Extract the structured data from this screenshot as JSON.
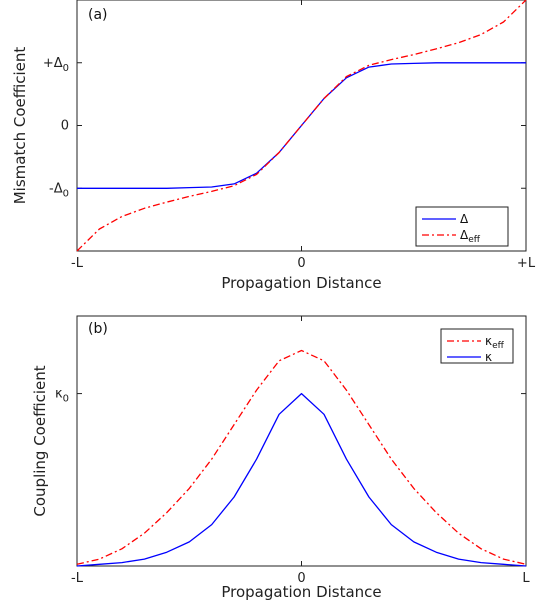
{
  "colors": {
    "blue": "#0000ff",
    "red": "#ff0000",
    "axis": "#222222"
  },
  "chart_data": [
    {
      "type": "line",
      "panel_label": "(a)",
      "xlabel": "Propagation Distance",
      "ylabel": "Mismatch Coefficient",
      "xlim": [
        -1,
        1
      ],
      "ylim": [
        -2,
        2
      ],
      "x_ticks": [
        {
          "value": -1,
          "label": "-L"
        },
        {
          "value": 0,
          "label": "0"
        },
        {
          "value": 1,
          "label": "+L"
        }
      ],
      "y_ticks": [
        {
          "value": 1,
          "label": "+Δ",
          "sub": "0"
        },
        {
          "value": 0,
          "label": "0",
          "sub": ""
        },
        {
          "value": -1,
          "label": "-Δ",
          "sub": "0"
        }
      ],
      "legend_position": "bottom-right",
      "series": [
        {
          "name": "Δ",
          "name_sub": "",
          "color": "#0000ff",
          "style": "solid",
          "x": [
            -1,
            -0.9,
            -0.8,
            -0.7,
            -0.6,
            -0.5,
            -0.4,
            -0.3,
            -0.2,
            -0.1,
            0,
            0.1,
            0.2,
            0.3,
            0.4,
            0.5,
            0.6,
            0.7,
            0.8,
            0.9,
            1
          ],
          "y": [
            -1,
            -1,
            -1,
            -1,
            -1,
            -0.99,
            -0.98,
            -0.93,
            -0.76,
            -0.43,
            0,
            0.43,
            0.76,
            0.93,
            0.98,
            0.99,
            1,
            1,
            1,
            1,
            1
          ]
        },
        {
          "name": "Δ",
          "name_sub": "eff",
          "color": "#ff0000",
          "style": "dashdot",
          "x": [
            -1,
            -0.9,
            -0.8,
            -0.7,
            -0.6,
            -0.5,
            -0.4,
            -0.3,
            -0.2,
            -0.1,
            0,
            0.1,
            0.2,
            0.3,
            0.4,
            0.5,
            0.6,
            0.7,
            0.8,
            0.9,
            1
          ],
          "y": [
            -2,
            -1.65,
            -1.45,
            -1.32,
            -1.22,
            -1.13,
            -1.05,
            -0.96,
            -0.78,
            -0.43,
            0,
            0.43,
            0.78,
            0.96,
            1.05,
            1.13,
            1.22,
            1.32,
            1.45,
            1.65,
            2
          ]
        }
      ]
    },
    {
      "type": "line",
      "panel_label": "(b)",
      "xlabel": "Propagation Distance",
      "ylabel": "Coupling Coefficient",
      "xlim": [
        -1,
        1
      ],
      "ylim": [
        0,
        1.45
      ],
      "x_ticks": [
        {
          "value": -1,
          "label": "-L"
        },
        {
          "value": 0,
          "label": "0"
        },
        {
          "value": 1,
          "label": "L"
        }
      ],
      "y_ticks": [
        {
          "value": 1,
          "label": "κ",
          "sub": "0"
        }
      ],
      "legend_position": "top-right",
      "series": [
        {
          "name": "κ",
          "name_sub": "eff",
          "color": "#ff0000",
          "style": "dashdot",
          "x": [
            -1,
            -0.9,
            -0.8,
            -0.7,
            -0.6,
            -0.5,
            -0.4,
            -0.3,
            -0.2,
            -0.1,
            0,
            0.1,
            0.2,
            0.3,
            0.4,
            0.5,
            0.6,
            0.7,
            0.8,
            0.9,
            1
          ],
          "y": [
            0.01,
            0.04,
            0.1,
            0.19,
            0.31,
            0.45,
            0.62,
            0.82,
            1.02,
            1.19,
            1.25,
            1.19,
            1.02,
            0.82,
            0.62,
            0.45,
            0.31,
            0.19,
            0.1,
            0.04,
            0.01
          ]
        },
        {
          "name": "κ",
          "name_sub": "",
          "color": "#0000ff",
          "style": "solid",
          "x": [
            -1,
            -0.9,
            -0.8,
            -0.7,
            -0.6,
            -0.5,
            -0.4,
            -0.3,
            -0.2,
            -0.1,
            0,
            0.1,
            0.2,
            0.3,
            0.4,
            0.5,
            0.6,
            0.7,
            0.8,
            0.9,
            1
          ],
          "y": [
            0,
            0.01,
            0.02,
            0.04,
            0.08,
            0.14,
            0.24,
            0.4,
            0.62,
            0.88,
            1,
            0.88,
            0.62,
            0.4,
            0.24,
            0.14,
            0.08,
            0.04,
            0.02,
            0.01,
            0
          ]
        }
      ]
    }
  ]
}
